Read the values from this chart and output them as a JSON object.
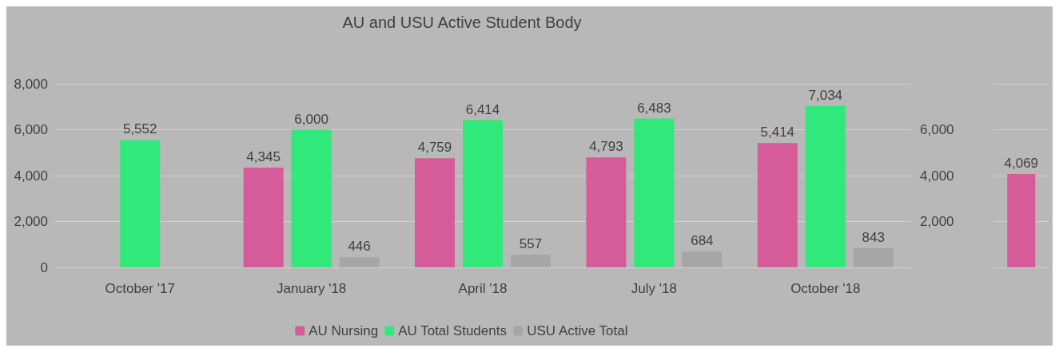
{
  "chart_data": [
    {
      "type": "bar",
      "title": "AU and USU Active Student Body",
      "categories": [
        "October '17",
        "January '18",
        "April '18",
        "July '18",
        "October '18"
      ],
      "series": [
        {
          "name": "AU Nursing",
          "color": "#d55c99",
          "values": [
            null,
            4345,
            4759,
            4793,
            5414
          ],
          "value_labels": [
            null,
            "4,345",
            "4,759",
            "4,793",
            "5,414"
          ]
        },
        {
          "name": "AU Total Students",
          "color": "#31e87a",
          "values": [
            5552,
            6000,
            6414,
            6483,
            7034
          ],
          "value_labels": [
            "5,552",
            "6,000",
            "6,414",
            "6,483",
            "7,034"
          ]
        },
        {
          "name": "USU Active Total",
          "color": "#a6a6a6",
          "values": [
            null,
            446,
            557,
            684,
            843
          ],
          "value_labels": [
            null,
            "446",
            "557",
            "684",
            "843"
          ]
        }
      ],
      "ylim": [
        0,
        8000
      ],
      "yticks": [
        {
          "value": 0,
          "label": "0"
        },
        {
          "value": 2000,
          "label": "2,000"
        },
        {
          "value": 4000,
          "label": "4,000"
        },
        {
          "value": 6000,
          "label": "6,000"
        },
        {
          "value": 8000,
          "label": "8,000"
        }
      ],
      "grid": "y",
      "legend": "bottom"
    },
    {
      "type": "bar",
      "categories": [
        null
      ],
      "series": [
        {
          "color": "#d55c99",
          "values": [
            4069
          ],
          "value_labels": [
            "4,069"
          ]
        }
      ],
      "ylim": [
        0,
        8000
      ],
      "yticks": [
        {
          "value": 0,
          "label": null
        },
        {
          "value": 2000,
          "label": "2,000"
        },
        {
          "value": 4000,
          "label": "4,000"
        },
        {
          "value": 6000,
          "label": "6,000"
        },
        {
          "value": 8000,
          "label": null
        }
      ],
      "grid": "y",
      "legend": false
    }
  ]
}
